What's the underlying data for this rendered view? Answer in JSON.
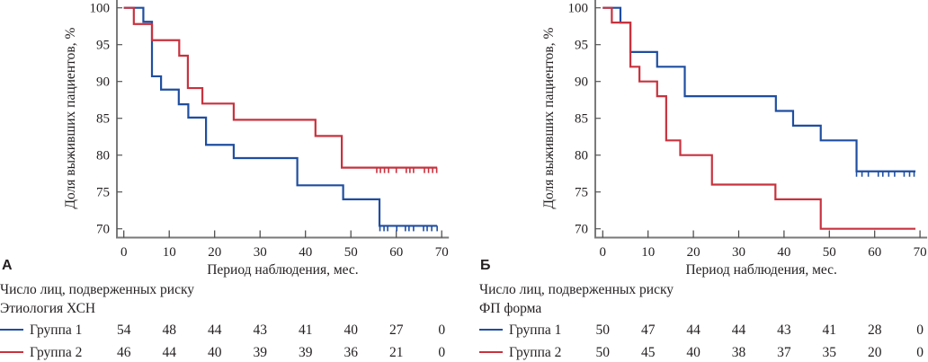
{
  "chart_data": [
    {
      "type": "line",
      "subtype": "kaplan-meier",
      "panel": "А",
      "title": "",
      "xlabel": "Период наблюдения, мес.",
      "ylabel": "Доля выживших пациентов, %",
      "xlim": [
        0,
        70
      ],
      "ylim": [
        70,
        100
      ],
      "xticks": [
        0,
        10,
        20,
        30,
        40,
        50,
        60,
        70
      ],
      "yticks": [
        70,
        75,
        80,
        85,
        90,
        95,
        100
      ],
      "grid": false,
      "series": [
        {
          "name": "Группа 1",
          "color": "#1f4ea0",
          "steps": [
            [
              0,
              100
            ],
            [
              4.3,
              98.1
            ],
            [
              6.2,
              90.7
            ],
            [
              8.2,
              88.9
            ],
            [
              12.1,
              86.9
            ],
            [
              14.2,
              85.1
            ],
            [
              18.1,
              81.4
            ],
            [
              24.2,
              79.6
            ],
            [
              38.2,
              75.9
            ],
            [
              48.3,
              74.0
            ],
            [
              56.3,
              70.4
            ]
          ],
          "end_x": 69,
          "censored": [
            56.4,
            57.3,
            58.1,
            60.1,
            62.0,
            62.8,
            63.8,
            66.0,
            66.8,
            67.8,
            69.0
          ]
        },
        {
          "name": "Группа 2",
          "color": "#c8323e",
          "steps": [
            [
              0,
              100
            ],
            [
              2.2,
              97.8
            ],
            [
              6.2,
              95.6
            ],
            [
              12.2,
              93.5
            ],
            [
              14.1,
              89.1
            ],
            [
              17.3,
              87.0
            ],
            [
              24.2,
              84.8
            ],
            [
              42.2,
              82.6
            ],
            [
              48.0,
              78.3
            ]
          ],
          "end_x": 69,
          "censored": [
            55.7,
            56.5,
            57.4,
            58.3,
            60.0,
            62.2,
            63.0,
            63.8,
            66.2,
            67.1,
            68.0,
            68.9
          ]
        }
      ],
      "risk_table": {
        "title": "Число лиц, подверженных риску",
        "subtitle": "Этиология ХСН",
        "times": [
          0,
          10,
          20,
          30,
          40,
          50,
          60,
          70
        ],
        "rows": [
          {
            "label": "Группа 1",
            "color": "#1f4ea0",
            "values": [
              54,
              48,
              44,
              43,
              41,
              40,
              27,
              0
            ]
          },
          {
            "label": "Группа 2",
            "color": "#c8323e",
            "values": [
              46,
              44,
              40,
              39,
              39,
              36,
              21,
              0
            ]
          }
        ]
      }
    },
    {
      "type": "line",
      "subtype": "kaplan-meier",
      "panel": "Б",
      "title": "",
      "xlabel": "Период наблюдения, мес.",
      "ylabel": "Доля выживших пациентов, %",
      "xlim": [
        0,
        70
      ],
      "ylim": [
        70,
        100
      ],
      "xticks": [
        0,
        10,
        20,
        30,
        40,
        50,
        60,
        70
      ],
      "yticks": [
        70,
        75,
        80,
        85,
        90,
        95,
        100
      ],
      "grid": false,
      "series": [
        {
          "name": "Группа 1",
          "color": "#1f4ea0",
          "steps": [
            [
              0,
              100
            ],
            [
              3.9,
              98
            ],
            [
              6.1,
              94
            ],
            [
              12.0,
              92
            ],
            [
              18.1,
              88
            ],
            [
              38.2,
              86
            ],
            [
              42.0,
              84
            ],
            [
              48.1,
              82
            ],
            [
              56.0,
              77.8
            ]
          ],
          "end_x": 69,
          "censored": [
            56.0,
            57.2,
            58.6,
            60.8,
            61.8,
            63.1,
            64.4,
            66.5,
            67.7,
            68.7
          ]
        },
        {
          "name": "Группа 2",
          "color": "#c8323e",
          "steps": [
            [
              0,
              100
            ],
            [
              2.0,
              98
            ],
            [
              6.1,
              92
            ],
            [
              8.1,
              90
            ],
            [
              12.0,
              88
            ],
            [
              14.0,
              82
            ],
            [
              17.1,
              80
            ],
            [
              24.1,
              76
            ],
            [
              38.1,
              74
            ],
            [
              48.1,
              70
            ]
          ],
          "end_x": 69,
          "censored": []
        }
      ],
      "risk_table": {
        "title": "Число лиц, подверженных риску",
        "subtitle": "ФП форма",
        "times": [
          0,
          10,
          20,
          30,
          40,
          50,
          60,
          70
        ],
        "rows": [
          {
            "label": "Группа 1",
            "color": "#1f4ea0",
            "values": [
              50,
              47,
              44,
              44,
              43,
              41,
              28,
              0
            ]
          },
          {
            "label": "Группа 2",
            "color": "#c8323e",
            "values": [
              50,
              45,
              40,
              38,
              37,
              35,
              20,
              0
            ]
          }
        ]
      }
    }
  ]
}
